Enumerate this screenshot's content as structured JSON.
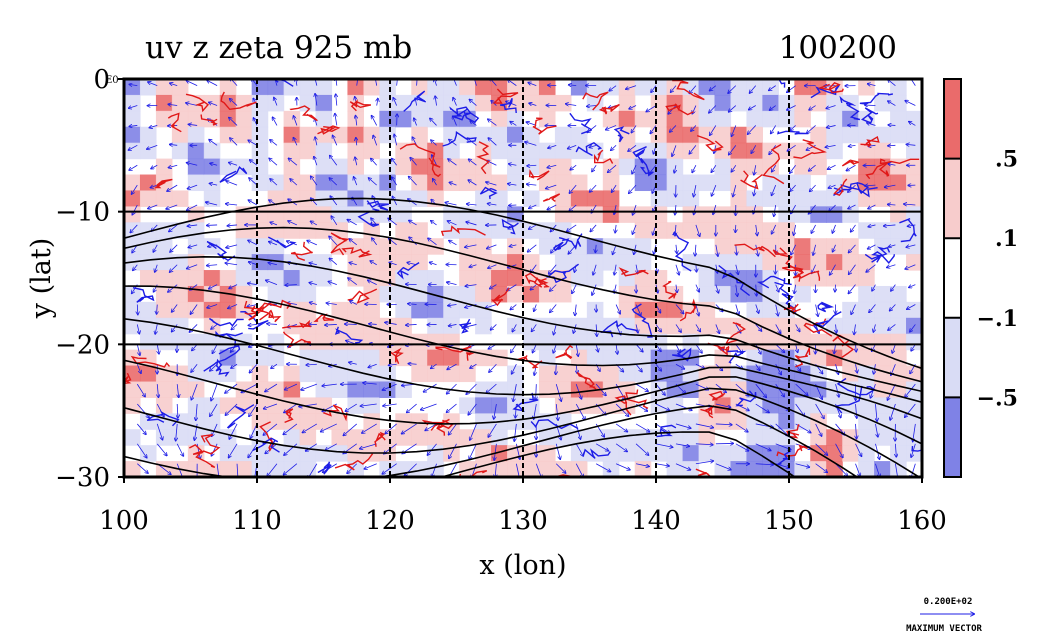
{
  "chart_data": {
    "type": "heatmap",
    "title_left": "uv z zeta 925 mb",
    "title_right": "100200",
    "xlabel": "x (lon)",
    "ylabel": "y (lat)",
    "xlim": [
      100,
      160
    ],
    "ylim": [
      -30,
      0
    ],
    "x_ticks": [
      100,
      110,
      120,
      130,
      140,
      150,
      160
    ],
    "x_tick_labels": [
      "100",
      "110",
      "120",
      "130",
      "140",
      "150",
      "160"
    ],
    "y_ticks": [
      0,
      -10,
      -20,
      -30
    ],
    "y_tick_labels": [
      "0",
      "−10",
      "−20",
      "−30"
    ],
    "top_left_mark": "E0",
    "grid": true,
    "colorbar": {
      "levels": [
        {
          "from": 0.5,
          "to": null,
          "color": "#ea6b6b"
        },
        {
          "from": 0.1,
          "to": 0.5,
          "color": "#f7cccc"
        },
        {
          "from": -0.1,
          "to": 0.1,
          "color": "#ffffff"
        },
        {
          "from": -0.5,
          "to": -0.1,
          "color": "#d9dcf5"
        },
        {
          "from": null,
          "to": -0.5,
          "color": "#7f82e6"
        }
      ],
      "boundary_labels": [
        ".5",
        ".1",
        "−.1",
        "−.5"
      ]
    },
    "vector_reference": {
      "value_label": "0.200E+02",
      "caption": "MAXIMUM VECTOR"
    },
    "colors": {
      "positive": "#e01818",
      "negative": "#1d1de6",
      "contour": "#000000"
    }
  }
}
